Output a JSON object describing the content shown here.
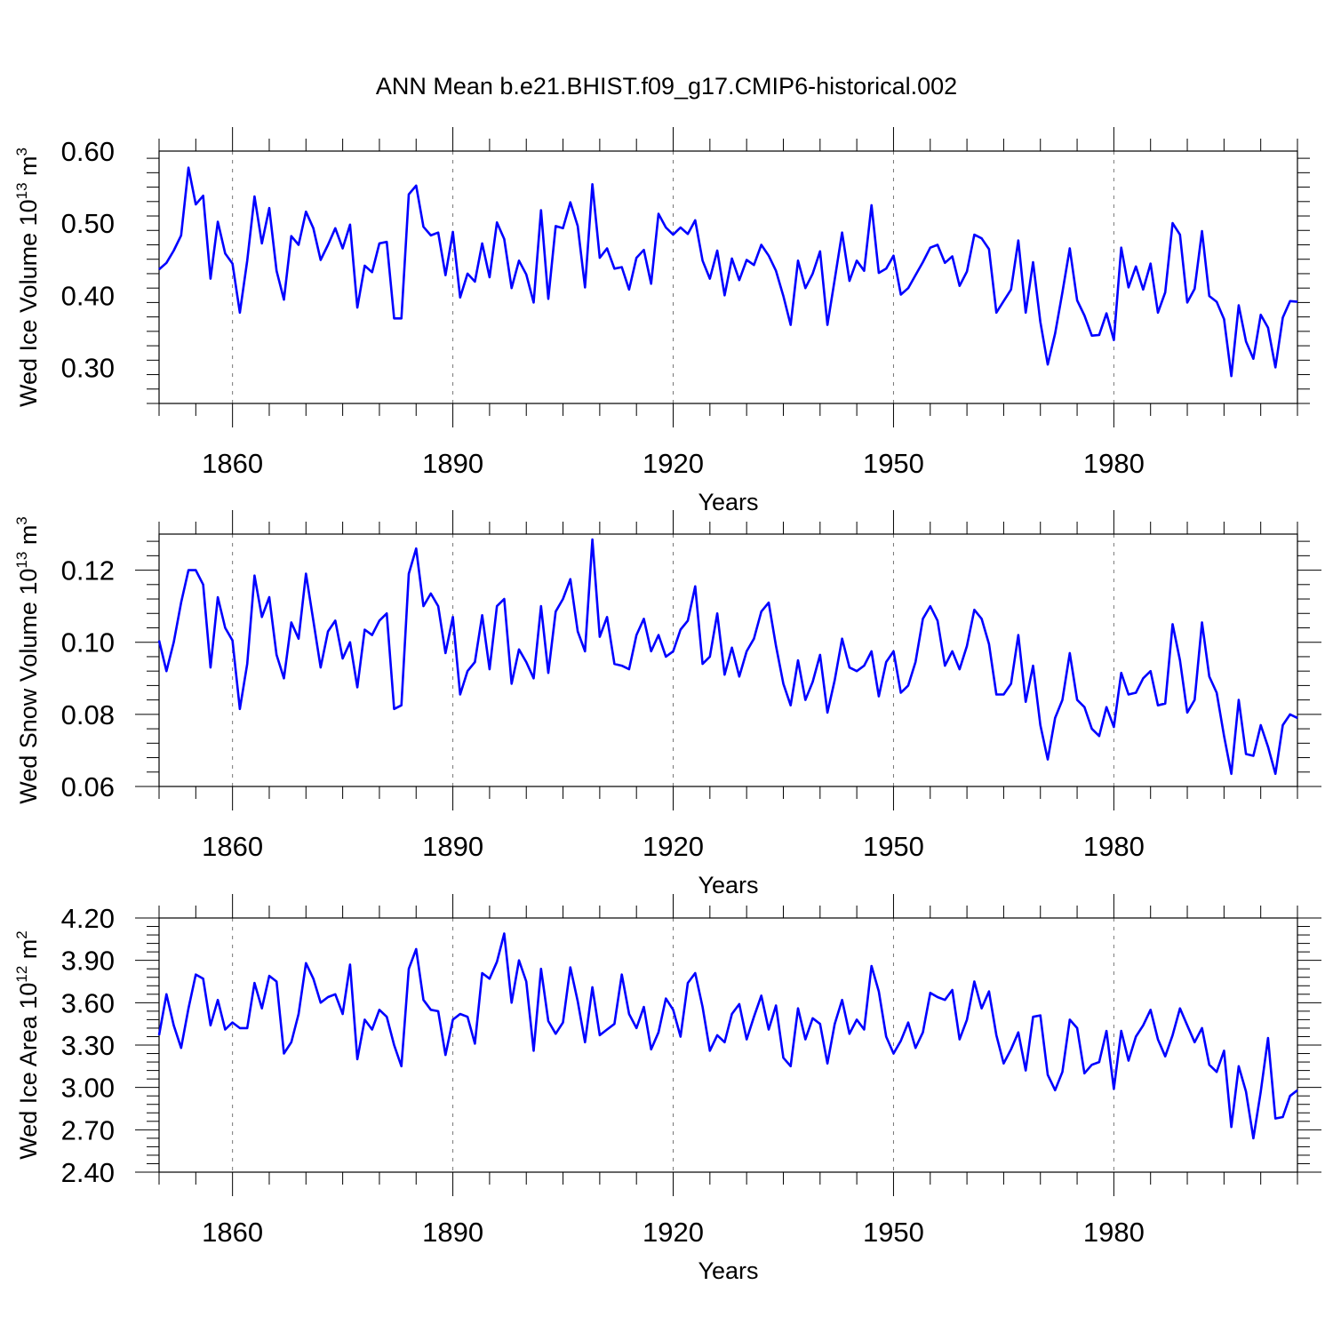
{
  "figure": {
    "title": "ANN Mean b.e21.BHIST.f09_g17.CMIP6-historical.002"
  },
  "chart_data": [
    {
      "type": "line",
      "xlabel": "Years",
      "ylabel": {
        "main": "Wed Ice Volume 10",
        "exp": "13",
        "unit": " m",
        "unit_exp": "3"
      },
      "xlim": [
        1850,
        2005
      ],
      "ylim": [
        0.25,
        0.6
      ],
      "xticks": [
        1860,
        1890,
        1920,
        1950,
        1980
      ],
      "yticks": [
        "0.30",
        "0.40",
        "0.50",
        "0.60"
      ],
      "ytick_values": [
        0.3,
        0.4,
        0.5,
        0.6
      ],
      "grid": "dashed vertical lines at major x ticks",
      "line_color": "#0000ff",
      "x": [
        1850,
        1851,
        1852,
        1853,
        1854,
        1855,
        1856,
        1857,
        1858,
        1859,
        1860,
        1861,
        1862,
        1863,
        1864,
        1865,
        1866,
        1867,
        1868,
        1869,
        1870,
        1871,
        1872,
        1873,
        1874,
        1875,
        1876,
        1877,
        1878,
        1879,
        1880,
        1881,
        1882,
        1883,
        1884,
        1885,
        1886,
        1887,
        1888,
        1889,
        1890,
        1891,
        1892,
        1893,
        1894,
        1895,
        1896,
        1897,
        1898,
        1899,
        1900,
        1901,
        1902,
        1903,
        1904,
        1905,
        1906,
        1907,
        1908,
        1909,
        1910,
        1911,
        1912,
        1913,
        1914,
        1915,
        1916,
        1917,
        1918,
        1919,
        1920,
        1921,
        1922,
        1923,
        1924,
        1925,
        1926,
        1927,
        1928,
        1929,
        1930,
        1931,
        1932,
        1933,
        1934,
        1935,
        1936,
        1937,
        1938,
        1939,
        1940,
        1941,
        1942,
        1943,
        1944,
        1945,
        1946,
        1947,
        1948,
        1949,
        1950,
        1951,
        1952,
        1953,
        1954,
        1955,
        1956,
        1957,
        1958,
        1959,
        1960,
        1961,
        1962,
        1963,
        1964,
        1965,
        1966,
        1967,
        1968,
        1969,
        1970,
        1971,
        1972,
        1973,
        1974,
        1975,
        1976,
        1977,
        1978,
        1979,
        1980,
        1981,
        1982,
        1983,
        1984,
        1985,
        1986,
        1987,
        1988,
        1989,
        1990,
        1991,
        1992,
        1993,
        1994,
        1995,
        1996,
        1997,
        1998,
        1999,
        2000,
        2001,
        2002,
        2003,
        2004,
        2005
      ],
      "values": [
        0.436,
        0.445,
        0.462,
        0.483,
        0.577,
        0.526,
        0.538,
        0.423,
        0.502,
        0.458,
        0.444,
        0.376,
        0.448,
        0.537,
        0.472,
        0.521,
        0.434,
        0.394,
        0.482,
        0.47,
        0.516,
        0.493,
        0.449,
        0.47,
        0.493,
        0.465,
        0.498,
        0.383,
        0.441,
        0.432,
        0.472,
        0.474,
        0.368,
        0.368,
        0.54,
        0.552,
        0.495,
        0.483,
        0.487,
        0.428,
        0.488,
        0.397,
        0.43,
        0.419,
        0.472,
        0.425,
        0.501,
        0.478,
        0.41,
        0.448,
        0.429,
        0.39,
        0.518,
        0.395,
        0.496,
        0.493,
        0.529,
        0.496,
        0.411,
        0.554,
        0.452,
        0.465,
        0.437,
        0.439,
        0.408,
        0.452,
        0.463,
        0.416,
        0.513,
        0.494,
        0.484,
        0.494,
        0.485,
        0.504,
        0.448,
        0.423,
        0.462,
        0.4,
        0.451,
        0.421,
        0.449,
        0.442,
        0.47,
        0.455,
        0.434,
        0.399,
        0.359,
        0.448,
        0.41,
        0.43,
        0.461,
        0.359,
        0.422,
        0.487,
        0.42,
        0.448,
        0.434,
        0.525,
        0.431,
        0.437,
        0.455,
        0.401,
        0.41,
        0.428,
        0.446,
        0.466,
        0.47,
        0.445,
        0.454,
        0.413,
        0.433,
        0.484,
        0.479,
        0.464,
        0.376,
        0.392,
        0.408,
        0.476,
        0.376,
        0.446,
        0.363,
        0.304,
        0.347,
        0.404,
        0.465,
        0.393,
        0.372,
        0.344,
        0.345,
        0.375,
        0.338,
        0.466,
        0.411,
        0.44,
        0.408,
        0.444,
        0.376,
        0.404,
        0.5,
        0.484,
        0.39,
        0.409,
        0.489,
        0.399,
        0.391,
        0.367,
        0.288,
        0.386,
        0.336,
        0.312,
        0.373,
        0.355,
        0.3,
        0.369,
        0.392,
        0.391
      ]
    },
    {
      "type": "line",
      "xlabel": "Years",
      "ylabel": {
        "main": "Wed Snow Volume 10",
        "exp": "13",
        "unit": " m",
        "unit_exp": "3"
      },
      "xlim": [
        1850,
        2005
      ],
      "ylim": [
        0.06,
        0.13
      ],
      "xticks": [
        1860,
        1890,
        1920,
        1950,
        1980
      ],
      "yticks": [
        "0.06",
        "0.08",
        "0.10",
        "0.12"
      ],
      "ytick_values": [
        0.06,
        0.08,
        0.1,
        0.12
      ],
      "grid": "dashed vertical lines at major x ticks",
      "line_color": "#0000ff",
      "x": [
        1850,
        1851,
        1852,
        1853,
        1854,
        1855,
        1856,
        1857,
        1858,
        1859,
        1860,
        1861,
        1862,
        1863,
        1864,
        1865,
        1866,
        1867,
        1868,
        1869,
        1870,
        1871,
        1872,
        1873,
        1874,
        1875,
        1876,
        1877,
        1878,
        1879,
        1880,
        1881,
        1882,
        1883,
        1884,
        1885,
        1886,
        1887,
        1888,
        1889,
        1890,
        1891,
        1892,
        1893,
        1894,
        1895,
        1896,
        1897,
        1898,
        1899,
        1900,
        1901,
        1902,
        1903,
        1904,
        1905,
        1906,
        1907,
        1908,
        1909,
        1910,
        1911,
        1912,
        1913,
        1914,
        1915,
        1916,
        1917,
        1918,
        1919,
        1920,
        1921,
        1922,
        1923,
        1924,
        1925,
        1926,
        1927,
        1928,
        1929,
        1930,
        1931,
        1932,
        1933,
        1934,
        1935,
        1936,
        1937,
        1938,
        1939,
        1940,
        1941,
        1942,
        1943,
        1944,
        1945,
        1946,
        1947,
        1948,
        1949,
        1950,
        1951,
        1952,
        1953,
        1954,
        1955,
        1956,
        1957,
        1958,
        1959,
        1960,
        1961,
        1962,
        1963,
        1964,
        1965,
        1966,
        1967,
        1968,
        1969,
        1970,
        1971,
        1972,
        1973,
        1974,
        1975,
        1976,
        1977,
        1978,
        1979,
        1980,
        1981,
        1982,
        1983,
        1984,
        1985,
        1986,
        1987,
        1988,
        1989,
        1990,
        1991,
        1992,
        1993,
        1994,
        1995,
        1996,
        1997,
        1998,
        1999,
        2000,
        2001,
        2002,
        2003,
        2004,
        2005
      ],
      "values": [
        0.1005,
        0.092,
        0.1,
        0.111,
        0.12,
        0.12,
        0.116,
        0.093,
        0.1125,
        0.104,
        0.1005,
        0.0815,
        0.094,
        0.1185,
        0.107,
        0.1125,
        0.0965,
        0.09,
        0.1055,
        0.101,
        0.119,
        0.106,
        0.093,
        0.103,
        0.106,
        0.0955,
        0.1,
        0.0875,
        0.1035,
        0.102,
        0.106,
        0.108,
        0.0815,
        0.0825,
        0.119,
        0.126,
        0.11,
        0.1135,
        0.11,
        0.097,
        0.107,
        0.0855,
        0.092,
        0.0945,
        0.1075,
        0.0925,
        0.11,
        0.112,
        0.0885,
        0.098,
        0.0945,
        0.09,
        0.11,
        0.0915,
        0.1085,
        0.112,
        0.1175,
        0.103,
        0.0975,
        0.1285,
        0.1015,
        0.107,
        0.094,
        0.0935,
        0.0925,
        0.102,
        0.1065,
        0.0975,
        0.102,
        0.096,
        0.0975,
        0.1035,
        0.106,
        0.1155,
        0.094,
        0.096,
        0.108,
        0.091,
        0.0985,
        0.0905,
        0.0975,
        0.101,
        0.1085,
        0.111,
        0.099,
        0.0885,
        0.0825,
        0.095,
        0.084,
        0.089,
        0.0965,
        0.0805,
        0.0895,
        0.101,
        0.093,
        0.092,
        0.0935,
        0.0975,
        0.085,
        0.0945,
        0.0975,
        0.086,
        0.088,
        0.0945,
        0.1065,
        0.11,
        0.106,
        0.0935,
        0.0975,
        0.0925,
        0.099,
        0.109,
        0.1065,
        0.0995,
        0.0855,
        0.0855,
        0.0885,
        0.102,
        0.0835,
        0.0935,
        0.077,
        0.0675,
        0.079,
        0.084,
        0.097,
        0.084,
        0.082,
        0.076,
        0.074,
        0.082,
        0.0765,
        0.0915,
        0.0855,
        0.086,
        0.09,
        0.092,
        0.0825,
        0.083,
        0.105,
        0.095,
        0.0805,
        0.084,
        0.1055,
        0.0905,
        0.086,
        0.074,
        0.0635,
        0.084,
        0.069,
        0.0685,
        0.077,
        0.071,
        0.0635,
        0.077,
        0.08,
        0.079
      ]
    },
    {
      "type": "line",
      "xlabel": "Years",
      "ylabel": {
        "main": "Wed Ice Area 10",
        "exp": "12",
        "unit": " m",
        "unit_exp": "2"
      },
      "xlim": [
        1850,
        2005
      ],
      "ylim": [
        2.4,
        4.2
      ],
      "xticks": [
        1860,
        1890,
        1920,
        1950,
        1980
      ],
      "yticks": [
        "2.40",
        "2.70",
        "3.00",
        "3.30",
        "3.60",
        "3.90",
        "4.20"
      ],
      "ytick_values": [
        2.4,
        2.7,
        3.0,
        3.3,
        3.6,
        3.9,
        4.2
      ],
      "grid": "dashed vertical lines at major x ticks",
      "line_color": "#0000ff",
      "x": [
        1850,
        1851,
        1852,
        1853,
        1854,
        1855,
        1856,
        1857,
        1858,
        1859,
        1860,
        1861,
        1862,
        1863,
        1864,
        1865,
        1866,
        1867,
        1868,
        1869,
        1870,
        1871,
        1872,
        1873,
        1874,
        1875,
        1876,
        1877,
        1878,
        1879,
        1880,
        1881,
        1882,
        1883,
        1884,
        1885,
        1886,
        1887,
        1888,
        1889,
        1890,
        1891,
        1892,
        1893,
        1894,
        1895,
        1896,
        1897,
        1898,
        1899,
        1900,
        1901,
        1902,
        1903,
        1904,
        1905,
        1906,
        1907,
        1908,
        1909,
        1910,
        1911,
        1912,
        1913,
        1914,
        1915,
        1916,
        1917,
        1918,
        1919,
        1920,
        1921,
        1922,
        1923,
        1924,
        1925,
        1926,
        1927,
        1928,
        1929,
        1930,
        1931,
        1932,
        1933,
        1934,
        1935,
        1936,
        1937,
        1938,
        1939,
        1940,
        1941,
        1942,
        1943,
        1944,
        1945,
        1946,
        1947,
        1948,
        1949,
        1950,
        1951,
        1952,
        1953,
        1954,
        1955,
        1956,
        1957,
        1958,
        1959,
        1960,
        1961,
        1962,
        1963,
        1964,
        1965,
        1966,
        1967,
        1968,
        1969,
        1970,
        1971,
        1972,
        1973,
        1974,
        1975,
        1976,
        1977,
        1978,
        1979,
        1980,
        1981,
        1982,
        1983,
        1984,
        1985,
        1986,
        1987,
        1988,
        1989,
        1990,
        1991,
        1992,
        1993,
        1994,
        1995,
        1996,
        1997,
        1998,
        1999,
        2000,
        2001,
        2002,
        2003,
        2004,
        2005
      ],
      "values": [
        3.37,
        3.66,
        3.44,
        3.28,
        3.56,
        3.8,
        3.77,
        3.44,
        3.62,
        3.41,
        3.46,
        3.42,
        3.42,
        3.74,
        3.56,
        3.79,
        3.75,
        3.24,
        3.32,
        3.52,
        3.88,
        3.77,
        3.6,
        3.64,
        3.66,
        3.52,
        3.87,
        3.2,
        3.48,
        3.41,
        3.55,
        3.5,
        3.3,
        3.15,
        3.84,
        3.98,
        3.62,
        3.55,
        3.54,
        3.23,
        3.48,
        3.52,
        3.5,
        3.31,
        3.81,
        3.77,
        3.89,
        4.09,
        3.6,
        3.9,
        3.75,
        3.26,
        3.84,
        3.47,
        3.38,
        3.46,
        3.85,
        3.61,
        3.32,
        3.71,
        3.37,
        3.41,
        3.45,
        3.8,
        3.52,
        3.42,
        3.57,
        3.27,
        3.39,
        3.63,
        3.55,
        3.36,
        3.74,
        3.81,
        3.57,
        3.26,
        3.37,
        3.32,
        3.52,
        3.59,
        3.34,
        3.5,
        3.65,
        3.41,
        3.58,
        3.21,
        3.15,
        3.56,
        3.34,
        3.49,
        3.45,
        3.17,
        3.45,
        3.62,
        3.38,
        3.48,
        3.41,
        3.86,
        3.68,
        3.36,
        3.24,
        3.33,
        3.46,
        3.28,
        3.39,
        3.67,
        3.64,
        3.62,
        3.69,
        3.34,
        3.48,
        3.75,
        3.56,
        3.68,
        3.37,
        3.17,
        3.27,
        3.39,
        3.12,
        3.5,
        3.51,
        3.09,
        2.98,
        3.11,
        3.48,
        3.42,
        3.1,
        3.16,
        3.18,
        3.4,
        2.99,
        3.4,
        3.19,
        3.36,
        3.44,
        3.55,
        3.34,
        3.22,
        3.37,
        3.56,
        3.44,
        3.32,
        3.42,
        3.16,
        3.11,
        3.26,
        2.72,
        3.15,
        2.97,
        2.64,
        2.97,
        3.35,
        2.78,
        2.79,
        2.94,
        2.98
      ]
    }
  ]
}
